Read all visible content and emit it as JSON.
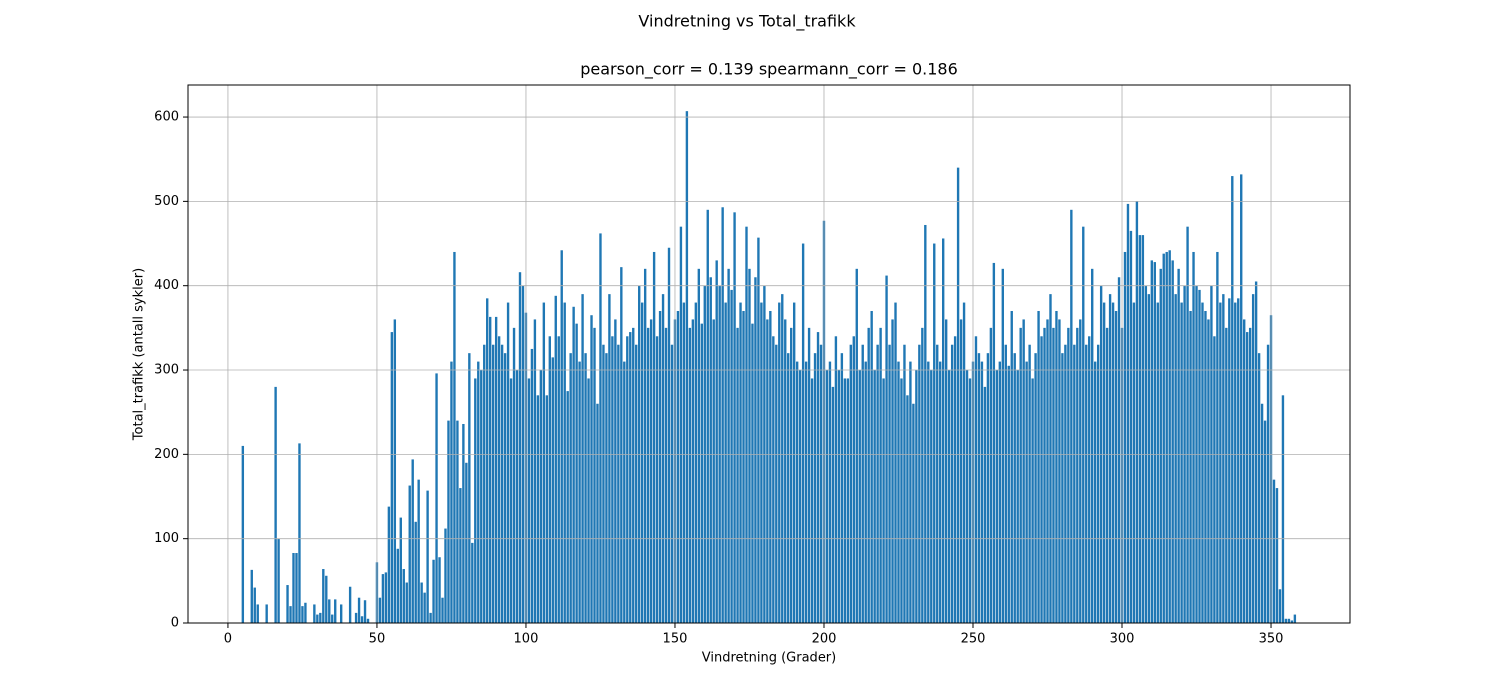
{
  "chart_data": {
    "type": "bar",
    "title": "Vindretning vs Total_trafikk",
    "subtitle": "pearson_corr = 0.139 spearmann_corr = 0.186",
    "xlabel": "Vindretning (Grader)",
    "ylabel": "Total_trafikk (antall sykler)",
    "color": "#1f77b4",
    "grid": true,
    "xlim": [
      -13.4,
      376.5
    ],
    "ylim": [
      0,
      638
    ],
    "xticks": [
      0,
      50,
      100,
      150,
      200,
      250,
      300,
      350
    ],
    "yticks": [
      0,
      100,
      200,
      300,
      400,
      500,
      600
    ],
    "x": [
      5,
      8,
      9,
      10,
      13,
      16,
      17,
      20,
      21,
      22,
      23,
      24,
      25,
      26,
      29,
      30,
      31,
      32,
      33,
      34,
      35,
      36,
      38,
      41,
      43,
      44,
      45,
      46,
      47,
      50,
      51,
      52,
      53,
      54,
      55,
      56,
      57,
      58,
      59,
      60,
      61,
      62,
      63,
      64,
      65,
      66,
      67,
      68,
      69,
      70,
      71,
      72,
      73,
      74,
      75,
      76,
      77,
      78,
      79,
      80,
      81,
      82,
      83,
      84,
      85,
      86,
      87,
      88,
      89,
      90,
      91,
      92,
      93,
      94,
      95,
      96,
      97,
      98,
      99,
      100,
      101,
      102,
      103,
      104,
      105,
      106,
      107,
      108,
      109,
      110,
      111,
      112,
      113,
      114,
      115,
      116,
      117,
      118,
      119,
      120,
      121,
      122,
      123,
      124,
      125,
      126,
      127,
      128,
      129,
      130,
      131,
      132,
      133,
      134,
      135,
      136,
      137,
      138,
      139,
      140,
      141,
      142,
      143,
      144,
      145,
      146,
      147,
      148,
      149,
      150,
      151,
      152,
      153,
      154,
      155,
      156,
      157,
      158,
      159,
      160,
      161,
      162,
      163,
      164,
      165,
      166,
      167,
      168,
      169,
      170,
      171,
      172,
      173,
      174,
      175,
      176,
      177,
      178,
      179,
      180,
      181,
      182,
      183,
      184,
      185,
      186,
      187,
      188,
      189,
      190,
      191,
      192,
      193,
      194,
      195,
      196,
      197,
      198,
      199,
      200,
      201,
      202,
      203,
      204,
      205,
      206,
      207,
      208,
      209,
      210,
      211,
      212,
      213,
      214,
      215,
      216,
      217,
      218,
      219,
      220,
      221,
      222,
      223,
      224,
      225,
      226,
      227,
      228,
      229,
      230,
      231,
      232,
      233,
      234,
      235,
      236,
      237,
      238,
      239,
      240,
      241,
      242,
      243,
      244,
      245,
      246,
      247,
      248,
      249,
      250,
      251,
      252,
      253,
      254,
      255,
      256,
      257,
      258,
      259,
      260,
      261,
      262,
      263,
      264,
      265,
      266,
      267,
      268,
      269,
      270,
      271,
      272,
      273,
      274,
      275,
      276,
      277,
      278,
      279,
      280,
      281,
      282,
      283,
      284,
      285,
      286,
      287,
      288,
      289,
      290,
      291,
      292,
      293,
      294,
      295,
      296,
      297,
      298,
      299,
      300,
      301,
      302,
      303,
      304,
      305,
      306,
      307,
      308,
      309,
      310,
      311,
      312,
      313,
      314,
      315,
      316,
      317,
      318,
      319,
      320,
      321,
      322,
      323,
      324,
      325,
      326,
      327,
      328,
      329,
      330,
      331,
      332,
      333,
      334,
      335,
      336,
      337,
      338,
      339,
      340,
      341,
      342,
      343,
      344,
      345,
      346,
      347,
      348,
      349,
      350,
      351,
      352,
      353,
      354,
      355,
      356,
      357,
      358
    ],
    "values": [
      210,
      63,
      42,
      22,
      22,
      280,
      100,
      45,
      20,
      83,
      83,
      213,
      20,
      24,
      22,
      10,
      12,
      64,
      56,
      28,
      10,
      28,
      22,
      43,
      12,
      30,
      8,
      27,
      5,
      72,
      30,
      58,
      60,
      138,
      345,
      360,
      88,
      125,
      64,
      48,
      163,
      194,
      120,
      170,
      48,
      36,
      157,
      12,
      75,
      296,
      78,
      30,
      112,
      240,
      310,
      440,
      240,
      160,
      236,
      190,
      320,
      95,
      290,
      310,
      300,
      330,
      385,
      363,
      330,
      363,
      340,
      330,
      320,
      380,
      290,
      350,
      300,
      416,
      400,
      368,
      290,
      325,
      360,
      270,
      300,
      380,
      270,
      340,
      315,
      388,
      340,
      442,
      380,
      275,
      320,
      375,
      355,
      310,
      390,
      320,
      290,
      365,
      350,
      260,
      462,
      330,
      320,
      390,
      340,
      360,
      330,
      422,
      310,
      340,
      345,
      350,
      330,
      400,
      380,
      420,
      350,
      360,
      440,
      340,
      370,
      390,
      350,
      445,
      330,
      360,
      370,
      470,
      380,
      607,
      350,
      360,
      380,
      420,
      355,
      400,
      490,
      410,
      360,
      430,
      400,
      493,
      380,
      420,
      395,
      487,
      350,
      380,
      370,
      470,
      420,
      355,
      410,
      457,
      380,
      400,
      360,
      370,
      340,
      330,
      380,
      390,
      360,
      320,
      350,
      380,
      310,
      300,
      450,
      310,
      350,
      290,
      320,
      345,
      330,
      477,
      300,
      310,
      280,
      340,
      300,
      320,
      290,
      290,
      330,
      340,
      420,
      300,
      330,
      310,
      350,
      370,
      300,
      330,
      350,
      290,
      412,
      330,
      360,
      380,
      310,
      290,
      330,
      270,
      310,
      260,
      300,
      330,
      350,
      472,
      310,
      300,
      450,
      330,
      310,
      456,
      360,
      300,
      330,
      340,
      540,
      360,
      380,
      300,
      290,
      310,
      340,
      320,
      310,
      280,
      320,
      350,
      427,
      300,
      310,
      420,
      330,
      305,
      370,
      320,
      300,
      350,
      360,
      310,
      330,
      290,
      320,
      370,
      340,
      350,
      360,
      390,
      350,
      370,
      360,
      320,
      330,
      350,
      490,
      330,
      350,
      360,
      470,
      330,
      340,
      420,
      310,
      330,
      400,
      380,
      350,
      390,
      380,
      370,
      410,
      350,
      440,
      497,
      465,
      380,
      500,
      460,
      460,
      400,
      390,
      430,
      428,
      380,
      420,
      438,
      440,
      442,
      430,
      390,
      420,
      380,
      400,
      470,
      370,
      440,
      400,
      395,
      380,
      370,
      360,
      400,
      340,
      440,
      380,
      390,
      350,
      385,
      530,
      380,
      385,
      532,
      360,
      345,
      350,
      390,
      405,
      320,
      260,
      240,
      330,
      365,
      170,
      160,
      40,
      270,
      5,
      5,
      3,
      10
    ]
  }
}
